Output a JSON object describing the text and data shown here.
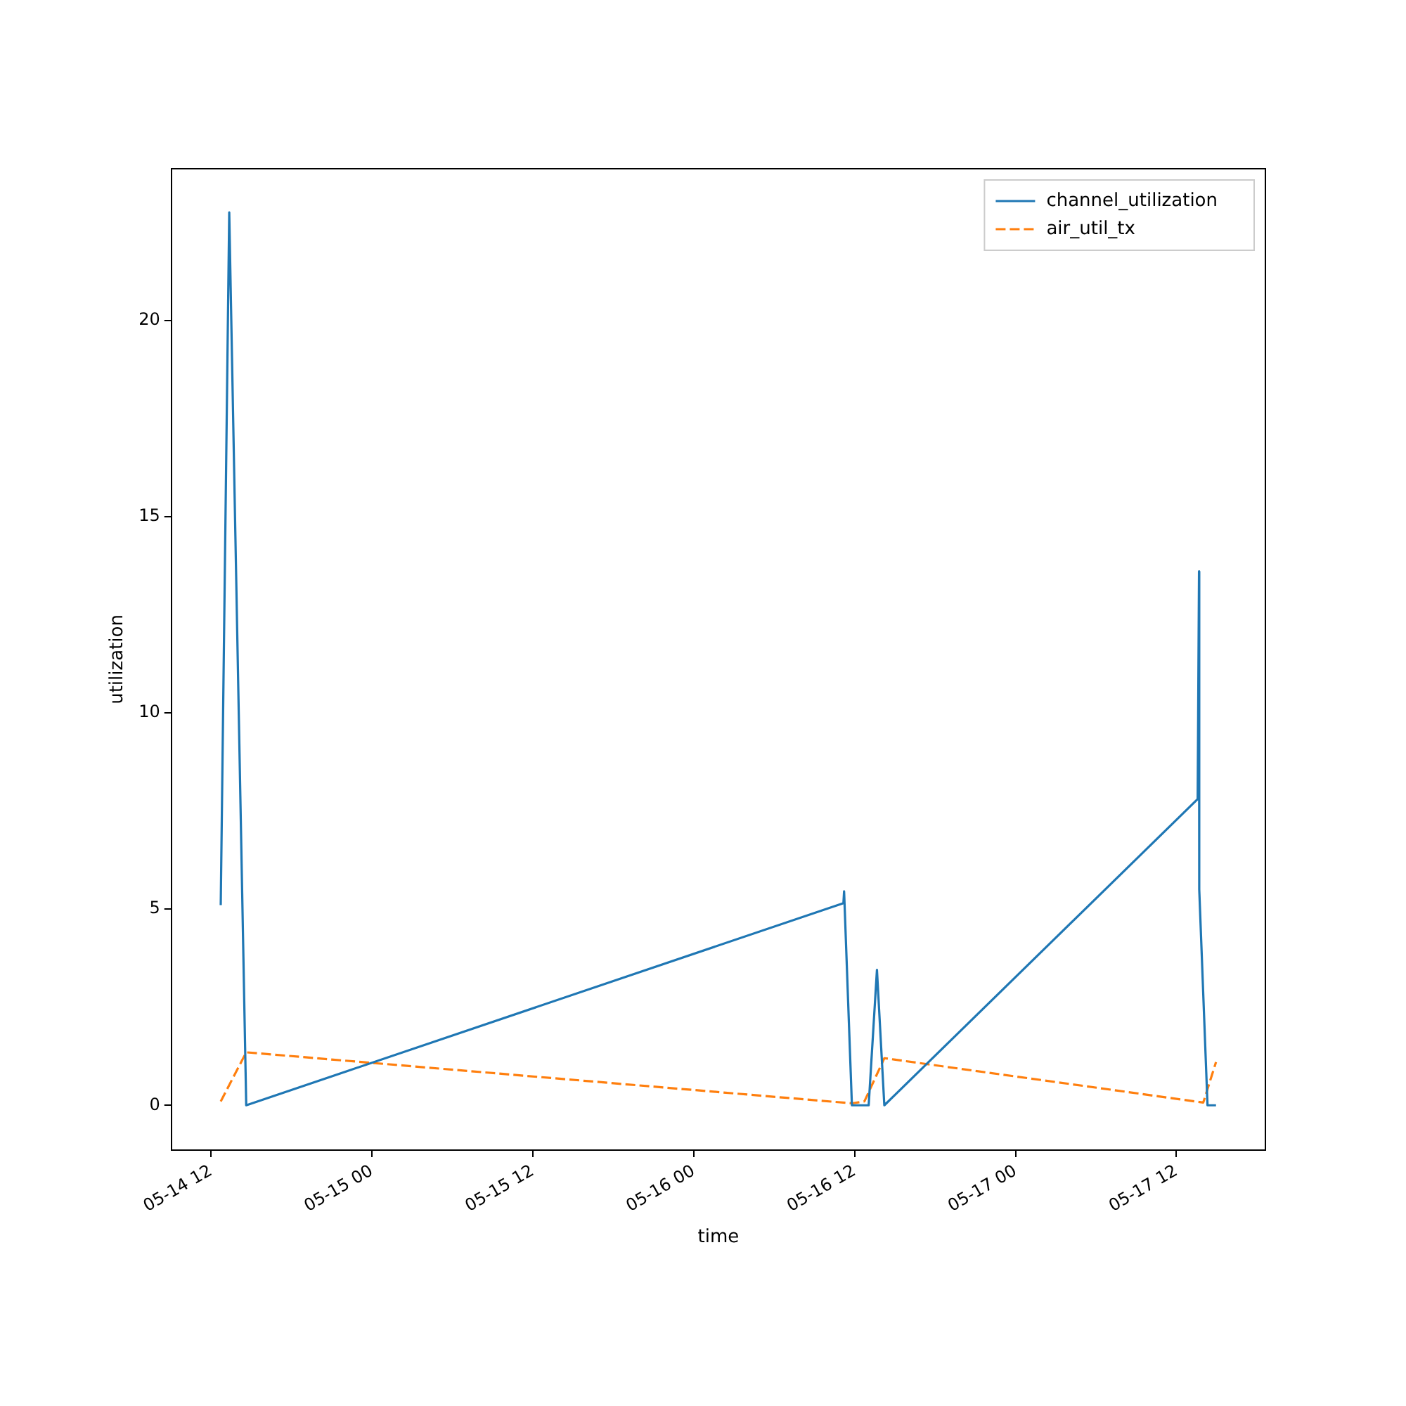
{
  "chart_data": {
    "type": "line",
    "xlabel": "time",
    "ylabel": "utilization",
    "xlim": [
      "--05-14T09:03",
      "--05-17T18:38"
    ],
    "xticks": [
      {
        "value": "--05-14T12:00",
        "label": "05-14 12"
      },
      {
        "value": "--05-15T00:00",
        "label": "05-15 00"
      },
      {
        "value": "--05-15T12:00",
        "label": "05-15 12"
      },
      {
        "value": "--05-16T00:00",
        "label": "05-16 00"
      },
      {
        "value": "--05-16T12:00",
        "label": "05-16 12"
      },
      {
        "value": "--05-17T00:00",
        "label": "05-17 00"
      },
      {
        "value": "--05-17T12:00",
        "label": "05-17 12"
      }
    ],
    "ylim": [
      -1.14,
      23.86
    ],
    "yticks": [
      0,
      5,
      10,
      15,
      20
    ],
    "grid": false,
    "legend": "top right",
    "marker": "none",
    "series": [
      {
        "name": "channel_utilization",
        "color": "#1f77b4",
        "line_style": "solid",
        "x": [
          "--05-14T12:44",
          "--05-14T13:22",
          "--05-14T14:38",
          "--05-16T11:10",
          "--05-16T11:13",
          "--05-16T11:48",
          "--05-16T13:03",
          "--05-16T13:40",
          "--05-16T14:13",
          "--05-17T13:35",
          "--05-17T13:41",
          "--05-17T13:42",
          "--05-17T14:19",
          "--05-17T14:57"
        ],
        "values": [
          5.1,
          22.75,
          0,
          5.15,
          5.45,
          0,
          0,
          3.45,
          0,
          7.8,
          13.6,
          5.5,
          0,
          0
        ]
      },
      {
        "name": "air_util_tx",
        "color": "#ff7f0e",
        "line_style": "dashed",
        "x": [
          "--05-14T12:44",
          "--05-14T14:38",
          "--05-16T11:48",
          "--05-16T12:44",
          "--05-16T14:13",
          "--05-17T14:00",
          "--05-17T14:57"
        ],
        "values": [
          0.1,
          1.35,
          0.05,
          0.1,
          1.2,
          0.07,
          1.1
        ]
      }
    ]
  }
}
